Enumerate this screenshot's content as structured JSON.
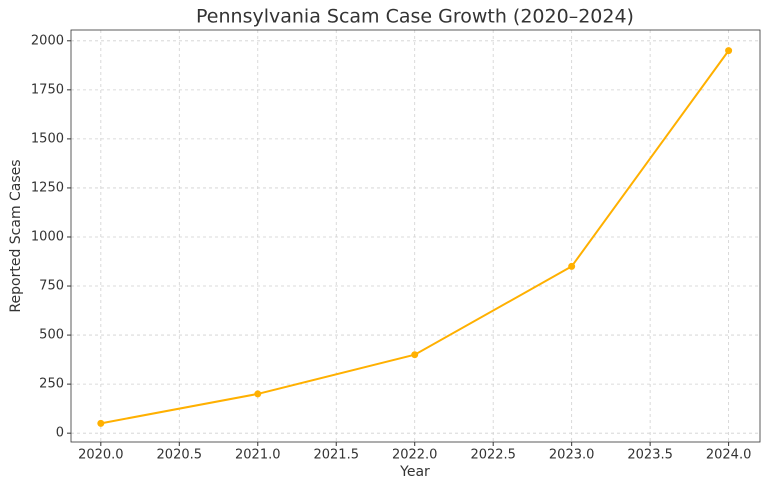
{
  "chart_data": {
    "type": "line",
    "title": "Pennsylvania Scam Case Growth (2020–2024)",
    "x_label": "Year",
    "y_label": "Reported Scam Cases",
    "x": [
      2020,
      2021,
      2022,
      2023,
      2024
    ],
    "values": [
      50,
      200,
      400,
      850,
      1950
    ],
    "color": "#ffb000",
    "xlim": [
      2019.81,
      2024.2
    ],
    "ylim": [
      -45,
      2055
    ],
    "xticks": [
      {
        "value": 2020,
        "label": "2020.0"
      },
      {
        "value": 2020.5,
        "label": "2020.5"
      },
      {
        "value": 2021,
        "label": "2021.0"
      },
      {
        "value": 2021.5,
        "label": "2021.5"
      },
      {
        "value": 2022,
        "label": "2022.0"
      },
      {
        "value": 2022.5,
        "label": "2022.5"
      },
      {
        "value": 2023,
        "label": "2023.0"
      },
      {
        "value": 2023.5,
        "label": "2023.5"
      },
      {
        "value": 2024,
        "label": "2024.0"
      }
    ],
    "yticks": [
      0,
      250,
      500,
      750,
      1000,
      1250,
      1500,
      1750,
      2000
    ],
    "grid": true
  }
}
